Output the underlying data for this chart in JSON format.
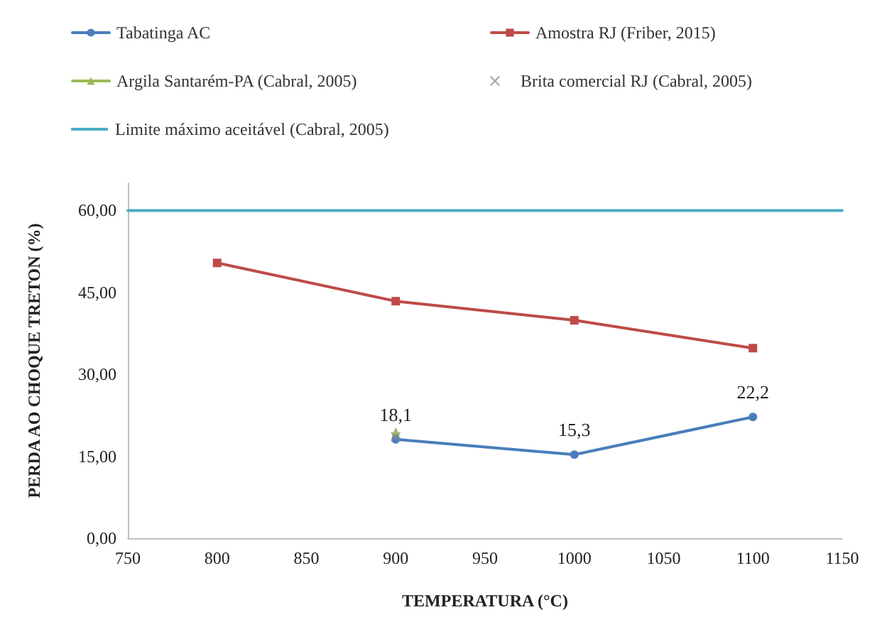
{
  "chart_data": {
    "type": "line",
    "xlabel": "TEMPERATURA (°C)",
    "ylabel": "PERDA AO CHOQUE TRETON (%)",
    "xlim": [
      750,
      1150
    ],
    "xticks": [
      750,
      800,
      850,
      900,
      950,
      1000,
      1050,
      1100,
      1150
    ],
    "ylim": [
      0,
      65
    ],
    "yticks": [
      {
        "value": 0,
        "label": "0,00"
      },
      {
        "value": 15,
        "label": "15,00"
      },
      {
        "value": 30,
        "label": "30,00"
      },
      {
        "value": 45,
        "label": "45,00"
      },
      {
        "value": 60,
        "label": "60,00"
      }
    ],
    "grid": false,
    "legend": "top",
    "line_style": "solid",
    "series": [
      {
        "name": "Tabatinga AC",
        "color": "#4a7ebb",
        "marker": "circle",
        "x": [
          900,
          1000,
          1100
        ],
        "values": [
          18.1,
          15.3,
          22.2
        ],
        "value_labels": [
          "18,1",
          "15,3",
          "22,2"
        ]
      },
      {
        "name": "Amostra RJ (Friber, 2015)",
        "color": "#be4b48",
        "marker": "square",
        "x": [
          800,
          900,
          1000,
          1100
        ],
        "values": [
          50.4,
          43.4,
          39.9,
          34.8
        ]
      },
      {
        "name": "Argila Santarém-PA (Cabral, 2005)",
        "color": "#9bbb59",
        "marker": "triangle",
        "x": [
          900
        ],
        "values": [
          19.5
        ]
      },
      {
        "name": "Brita comercial RJ (Cabral, 2005)",
        "type": "scatter",
        "color": "#8c8c8c",
        "marker": "cross",
        "x": [
          900
        ],
        "values": [
          18.6
        ]
      },
      {
        "name": "Limite máximo aceitável (Cabral, 2005)",
        "color": "#4bacc6",
        "marker": "none",
        "x": [
          750,
          1150
        ],
        "values": [
          60,
          60
        ]
      }
    ]
  }
}
